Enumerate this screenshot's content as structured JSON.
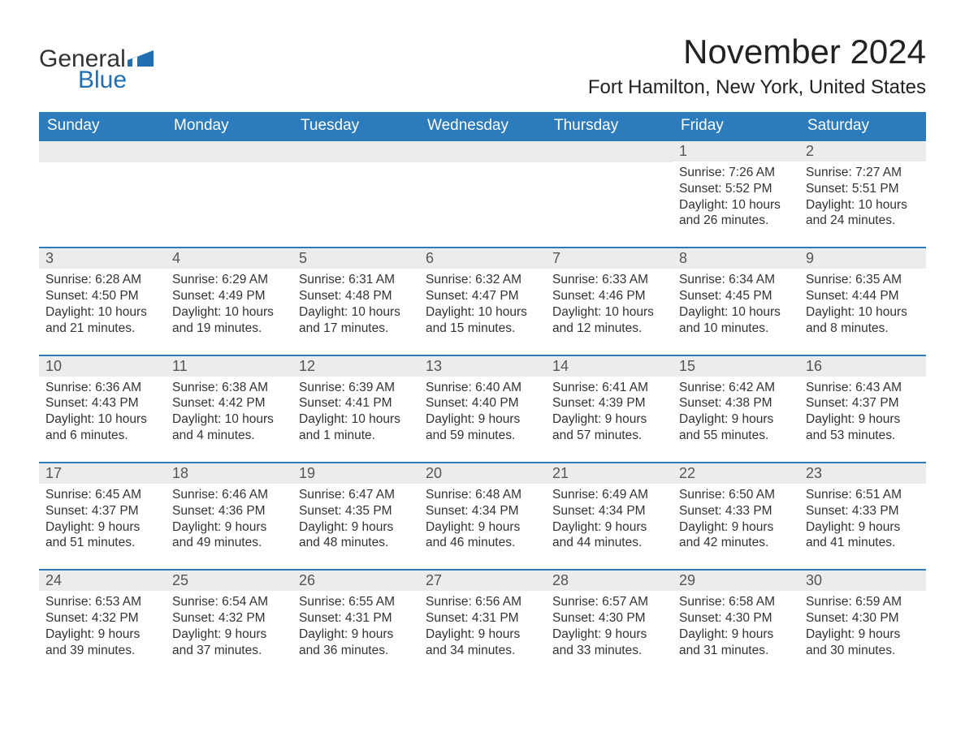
{
  "brand": {
    "general": "General",
    "blue": "Blue",
    "flag_color": "#1f6fb2"
  },
  "title": "November 2024",
  "location": "Fort Hamilton, New York, United States",
  "colors": {
    "header_bg": "#2b7bbd",
    "header_text": "#ffffff",
    "row_border": "#2b7bbd",
    "daynum_bg": "#ececec",
    "daynum_text": "#555555",
    "body_text": "#333333",
    "background": "#ffffff"
  },
  "weekdays": [
    "Sunday",
    "Monday",
    "Tuesday",
    "Wednesday",
    "Thursday",
    "Friday",
    "Saturday"
  ],
  "weeks": [
    [
      null,
      null,
      null,
      null,
      null,
      {
        "day": "1",
        "sunrise": "Sunrise: 7:26 AM",
        "sunset": "Sunset: 5:52 PM",
        "daylight": "Daylight: 10 hours and 26 minutes."
      },
      {
        "day": "2",
        "sunrise": "Sunrise: 7:27 AM",
        "sunset": "Sunset: 5:51 PM",
        "daylight": "Daylight: 10 hours and 24 minutes."
      }
    ],
    [
      {
        "day": "3",
        "sunrise": "Sunrise: 6:28 AM",
        "sunset": "Sunset: 4:50 PM",
        "daylight": "Daylight: 10 hours and 21 minutes."
      },
      {
        "day": "4",
        "sunrise": "Sunrise: 6:29 AM",
        "sunset": "Sunset: 4:49 PM",
        "daylight": "Daylight: 10 hours and 19 minutes."
      },
      {
        "day": "5",
        "sunrise": "Sunrise: 6:31 AM",
        "sunset": "Sunset: 4:48 PM",
        "daylight": "Daylight: 10 hours and 17 minutes."
      },
      {
        "day": "6",
        "sunrise": "Sunrise: 6:32 AM",
        "sunset": "Sunset: 4:47 PM",
        "daylight": "Daylight: 10 hours and 15 minutes."
      },
      {
        "day": "7",
        "sunrise": "Sunrise: 6:33 AM",
        "sunset": "Sunset: 4:46 PM",
        "daylight": "Daylight: 10 hours and 12 minutes."
      },
      {
        "day": "8",
        "sunrise": "Sunrise: 6:34 AM",
        "sunset": "Sunset: 4:45 PM",
        "daylight": "Daylight: 10 hours and 10 minutes."
      },
      {
        "day": "9",
        "sunrise": "Sunrise: 6:35 AM",
        "sunset": "Sunset: 4:44 PM",
        "daylight": "Daylight: 10 hours and 8 minutes."
      }
    ],
    [
      {
        "day": "10",
        "sunrise": "Sunrise: 6:36 AM",
        "sunset": "Sunset: 4:43 PM",
        "daylight": "Daylight: 10 hours and 6 minutes."
      },
      {
        "day": "11",
        "sunrise": "Sunrise: 6:38 AM",
        "sunset": "Sunset: 4:42 PM",
        "daylight": "Daylight: 10 hours and 4 minutes."
      },
      {
        "day": "12",
        "sunrise": "Sunrise: 6:39 AM",
        "sunset": "Sunset: 4:41 PM",
        "daylight": "Daylight: 10 hours and 1 minute."
      },
      {
        "day": "13",
        "sunrise": "Sunrise: 6:40 AM",
        "sunset": "Sunset: 4:40 PM",
        "daylight": "Daylight: 9 hours and 59 minutes."
      },
      {
        "day": "14",
        "sunrise": "Sunrise: 6:41 AM",
        "sunset": "Sunset: 4:39 PM",
        "daylight": "Daylight: 9 hours and 57 minutes."
      },
      {
        "day": "15",
        "sunrise": "Sunrise: 6:42 AM",
        "sunset": "Sunset: 4:38 PM",
        "daylight": "Daylight: 9 hours and 55 minutes."
      },
      {
        "day": "16",
        "sunrise": "Sunrise: 6:43 AM",
        "sunset": "Sunset: 4:37 PM",
        "daylight": "Daylight: 9 hours and 53 minutes."
      }
    ],
    [
      {
        "day": "17",
        "sunrise": "Sunrise: 6:45 AM",
        "sunset": "Sunset: 4:37 PM",
        "daylight": "Daylight: 9 hours and 51 minutes."
      },
      {
        "day": "18",
        "sunrise": "Sunrise: 6:46 AM",
        "sunset": "Sunset: 4:36 PM",
        "daylight": "Daylight: 9 hours and 49 minutes."
      },
      {
        "day": "19",
        "sunrise": "Sunrise: 6:47 AM",
        "sunset": "Sunset: 4:35 PM",
        "daylight": "Daylight: 9 hours and 48 minutes."
      },
      {
        "day": "20",
        "sunrise": "Sunrise: 6:48 AM",
        "sunset": "Sunset: 4:34 PM",
        "daylight": "Daylight: 9 hours and 46 minutes."
      },
      {
        "day": "21",
        "sunrise": "Sunrise: 6:49 AM",
        "sunset": "Sunset: 4:34 PM",
        "daylight": "Daylight: 9 hours and 44 minutes."
      },
      {
        "day": "22",
        "sunrise": "Sunrise: 6:50 AM",
        "sunset": "Sunset: 4:33 PM",
        "daylight": "Daylight: 9 hours and 42 minutes."
      },
      {
        "day": "23",
        "sunrise": "Sunrise: 6:51 AM",
        "sunset": "Sunset: 4:33 PM",
        "daylight": "Daylight: 9 hours and 41 minutes."
      }
    ],
    [
      {
        "day": "24",
        "sunrise": "Sunrise: 6:53 AM",
        "sunset": "Sunset: 4:32 PM",
        "daylight": "Daylight: 9 hours and 39 minutes."
      },
      {
        "day": "25",
        "sunrise": "Sunrise: 6:54 AM",
        "sunset": "Sunset: 4:32 PM",
        "daylight": "Daylight: 9 hours and 37 minutes."
      },
      {
        "day": "26",
        "sunrise": "Sunrise: 6:55 AM",
        "sunset": "Sunset: 4:31 PM",
        "daylight": "Daylight: 9 hours and 36 minutes."
      },
      {
        "day": "27",
        "sunrise": "Sunrise: 6:56 AM",
        "sunset": "Sunset: 4:31 PM",
        "daylight": "Daylight: 9 hours and 34 minutes."
      },
      {
        "day": "28",
        "sunrise": "Sunrise: 6:57 AM",
        "sunset": "Sunset: 4:30 PM",
        "daylight": "Daylight: 9 hours and 33 minutes."
      },
      {
        "day": "29",
        "sunrise": "Sunrise: 6:58 AM",
        "sunset": "Sunset: 4:30 PM",
        "daylight": "Daylight: 9 hours and 31 minutes."
      },
      {
        "day": "30",
        "sunrise": "Sunrise: 6:59 AM",
        "sunset": "Sunset: 4:30 PM",
        "daylight": "Daylight: 9 hours and 30 minutes."
      }
    ]
  ]
}
